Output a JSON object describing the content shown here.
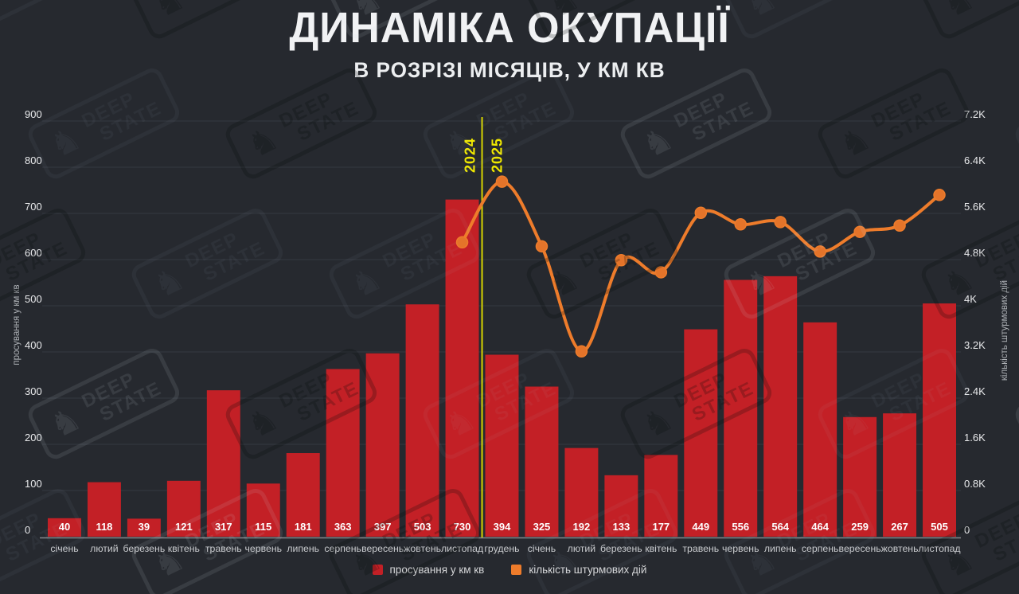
{
  "header": {
    "title": "ДИНАМІКА ОКУПАЦІЇ",
    "subtitle": "В РОЗРІЗІ МІСЯЦІВ, У КМ КВ"
  },
  "watermark": {
    "line1": "DEEP",
    "line2": "STATE",
    "knight_icon": "♞"
  },
  "colors": {
    "background": "#26292f",
    "bar_red": "#c32026",
    "line_orange": "#ee7c2b",
    "divider_yellow": "#d6d400",
    "year_label_yellow": "#f0e800",
    "grid": "#343940",
    "axis_line": "#85888d",
    "tick_text": "#e8e9eb",
    "month_text": "#c9cbce",
    "bar_value_text": "#ffffff"
  },
  "chart_data": {
    "type": "bar+line",
    "title": "ДИНАМІКА ОКУПАЦІЇ",
    "subtitle": "В РОЗРІЗІ МІСЯЦІВ, У КМ КВ",
    "grid": true,
    "legend_position": "bottom",
    "categories": [
      "січень",
      "лютий",
      "березень",
      "квітень",
      "травень",
      "червень",
      "липень",
      "серпень",
      "вересень",
      "жовтень",
      "листопад",
      "грудень",
      "січень",
      "лютий",
      "березень",
      "квітень",
      "травень",
      "червень",
      "липень",
      "серпень",
      "вересень",
      "жовтень",
      "листопад"
    ],
    "series": [
      {
        "name": "просування у км кв",
        "type": "bar",
        "axis": "left",
        "color": "#c32026",
        "values": [
          40,
          118,
          39,
          121,
          317,
          115,
          181,
          363,
          397,
          503,
          730,
          394,
          325,
          192,
          133,
          177,
          449,
          556,
          564,
          464,
          259,
          267,
          505
        ]
      },
      {
        "name": "кількість штурмових дій",
        "type": "line",
        "axis": "right",
        "color": "#ee7c2b",
        "values": [
          null,
          null,
          null,
          null,
          null,
          null,
          null,
          null,
          null,
          null,
          5100,
          6150,
          5030,
          3210,
          4790,
          4580,
          5610,
          5410,
          5450,
          4940,
          5280,
          5390,
          5920
        ]
      }
    ],
    "left_axis": {
      "title": "просування у км кв",
      "min": 0,
      "max": 900,
      "tick_step": 100,
      "ticks": [
        "0",
        "100",
        "200",
        "300",
        "400",
        "500",
        "600",
        "700",
        "800",
        "900"
      ]
    },
    "right_axis": {
      "title": "кількість штурмових дій",
      "min": 0,
      "max": 7200,
      "tick_step": 800,
      "ticks": [
        "0",
        "0.8K",
        "1.6K",
        "2.4K",
        "3.2K",
        "4K",
        "4.8K",
        "5.6K",
        "6.4K",
        "7.2K"
      ]
    },
    "divider": {
      "after_index": 10,
      "left_label": "2024",
      "right_label": "2025",
      "color": "#d6d400",
      "label_color": "#f0e800"
    }
  }
}
